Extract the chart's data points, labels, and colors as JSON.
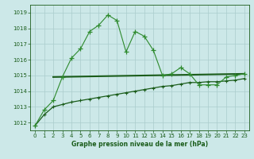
{
  "title": "Graphe pression niveau de la mer (hPa)",
  "bg_color": "#cce8e8",
  "grid_color": "#aacccc",
  "line_color": "#1a5c1a",
  "line_color2": "#2d8a2d",
  "xlim": [
    -0.5,
    23.5
  ],
  "ylim": [
    1011.5,
    1019.5
  ],
  "yticks": [
    1012,
    1013,
    1014,
    1015,
    1016,
    1017,
    1018,
    1019
  ],
  "xticks": [
    0,
    1,
    2,
    3,
    4,
    5,
    6,
    7,
    8,
    9,
    10,
    11,
    12,
    13,
    14,
    15,
    16,
    17,
    18,
    19,
    20,
    21,
    22,
    23
  ],
  "series1_x": [
    0,
    1,
    2,
    3,
    4,
    5,
    6,
    7,
    8,
    9,
    10,
    11,
    12,
    13,
    14,
    15,
    16,
    17,
    18,
    19,
    20,
    21,
    22,
    23
  ],
  "series1_y": [
    1011.8,
    1012.8,
    1013.4,
    1014.9,
    1016.1,
    1016.7,
    1017.8,
    1018.2,
    1018.85,
    1018.5,
    1016.5,
    1017.8,
    1017.5,
    1016.6,
    1015.0,
    1015.1,
    1015.5,
    1015.1,
    1014.4,
    1014.4,
    1014.4,
    1014.9,
    1015.0,
    1015.1
  ],
  "series2_x": [
    2,
    23
  ],
  "series2_y": [
    1014.9,
    1015.1
  ],
  "series3_x": [
    0,
    1,
    2,
    3,
    4,
    5,
    6,
    7,
    8,
    9,
    10,
    11,
    12,
    13,
    14,
    15,
    16,
    17,
    18,
    19,
    20,
    21,
    22,
    23
  ],
  "series3_y": [
    1011.8,
    1012.5,
    1013.0,
    1013.15,
    1013.3,
    1013.4,
    1013.5,
    1013.6,
    1013.7,
    1013.8,
    1013.9,
    1014.0,
    1014.1,
    1014.2,
    1014.3,
    1014.35,
    1014.45,
    1014.55,
    1014.55,
    1014.6,
    1014.6,
    1014.65,
    1014.7,
    1014.8
  ]
}
